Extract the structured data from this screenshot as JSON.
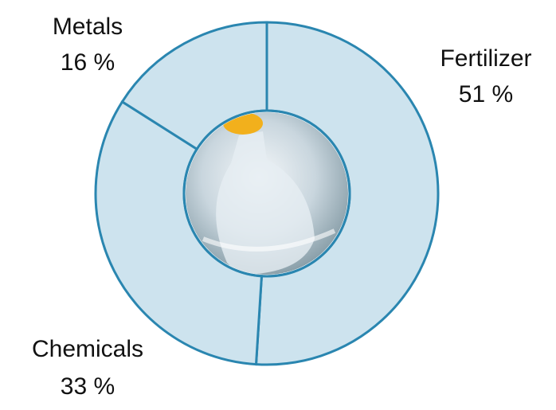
{
  "chart_data": {
    "type": "donut",
    "categories": [
      "Fertilizer",
      "Chemicals",
      "Metals"
    ],
    "values": [
      51,
      33,
      16
    ],
    "value_labels": [
      "51 %",
      "33 %",
      "16 %"
    ],
    "color": "#cde3ee",
    "edgecolor": "#2a86b0"
  }
}
